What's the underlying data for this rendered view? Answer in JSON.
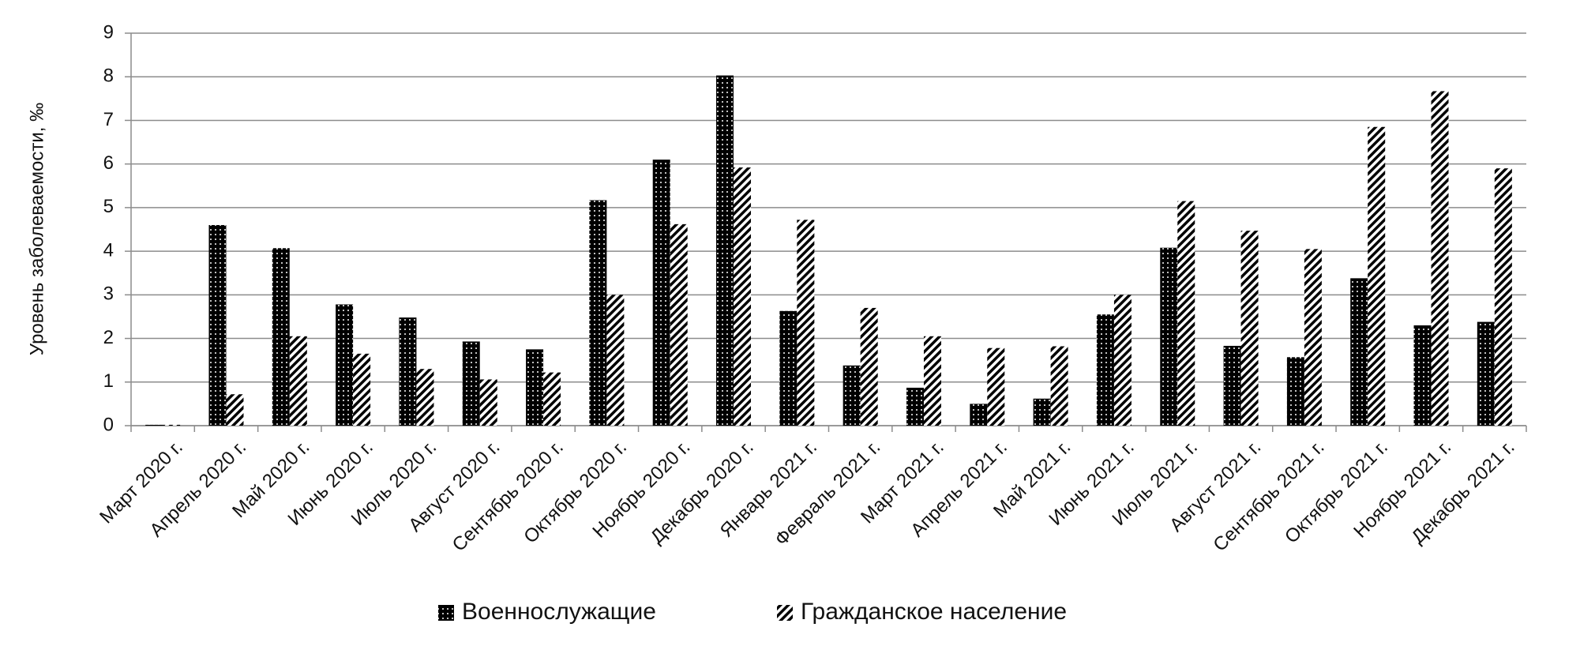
{
  "chart_data": {
    "type": "bar",
    "y_label": "Уровень заболеваемости, ‰",
    "categories": [
      "Март 2020 г.",
      "Апрель 2020 г.",
      "Май 2020 г.",
      "Июнь 2020 г.",
      "Июль 2020 г.",
      "Август 2020 г.",
      "Сентябрь 2020 г.",
      "Октябрь 2020 г.",
      "Ноябрь 2020 г.",
      "Декабрь 2020 г.",
      "Январь 2021 г.",
      "Февраль 2021 г.",
      "Март 2021 г.",
      "Апрель 2021 г.",
      "Май 2021 г.",
      "Июнь 2021 г.",
      "Июль 2021 г.",
      "Август 2021 г.",
      "Сентябрь 2021 г.",
      "Октябрь 2021 г.",
      "Ноябрь 2021 г.",
      "Декабрь 2021 г."
    ],
    "series": [
      {
        "name": "Военнослужащие",
        "color": "#000000",
        "pattern": "dots",
        "values": [
          0.02,
          4.6,
          4.07,
          2.78,
          2.48,
          1.93,
          1.75,
          5.17,
          6.1,
          8.03,
          2.63,
          1.38,
          0.87,
          0.5,
          0.62,
          2.55,
          4.08,
          1.83,
          1.57,
          3.38,
          2.3,
          2.38
        ]
      },
      {
        "name": "Гражданское население",
        "color": "#000000",
        "pattern": "hatch",
        "values": [
          0.02,
          0.72,
          2.05,
          1.65,
          1.3,
          1.06,
          1.22,
          3.0,
          4.62,
          5.92,
          4.72,
          2.7,
          2.05,
          1.78,
          1.82,
          3.0,
          5.15,
          4.47,
          4.05,
          6.85,
          7.67,
          5.9
        ]
      }
    ],
    "ylim": [
      0,
      9
    ],
    "yticks": [
      0,
      1,
      2,
      3,
      4,
      5,
      6,
      7,
      8,
      9
    ],
    "grid": true,
    "legend": "bottom"
  }
}
